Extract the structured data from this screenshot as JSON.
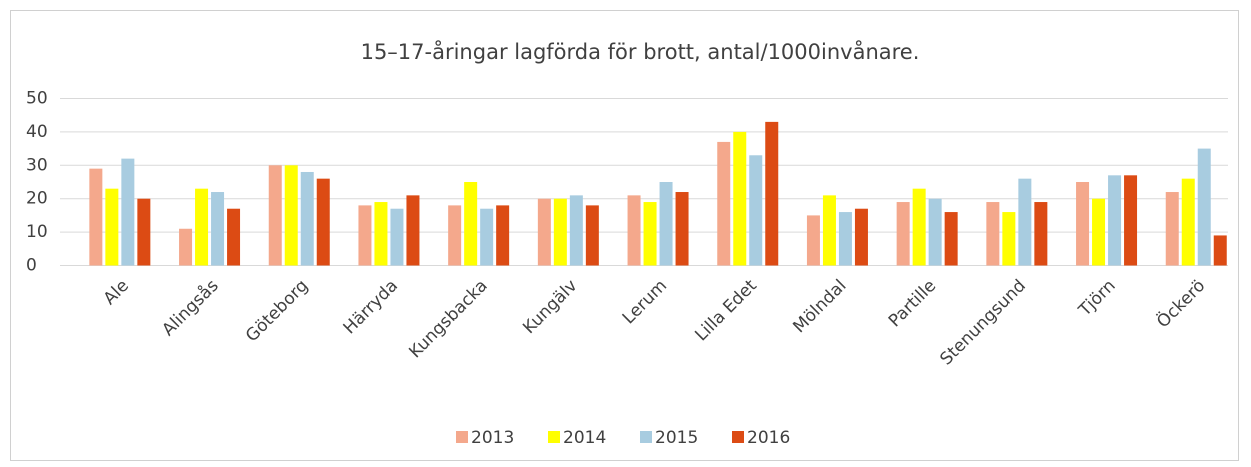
{
  "chart_data": {
    "type": "bar",
    "title": "15–17-åringar lagförda för brott, antal/1000invånare.",
    "categories": [
      "Ale",
      "Alingsås",
      "Göteborg",
      "Härryda",
      "Kungsbacka",
      "Kungälv",
      "Lerum",
      "Lilla Edet",
      "Mölndal",
      "Partille",
      "Stenungsund",
      "Tjörn",
      "Öckerö"
    ],
    "series": [
      {
        "name": "2013",
        "color": "#F4A88C",
        "values": [
          29,
          11,
          30,
          18,
          18,
          20,
          21,
          37,
          15,
          19,
          19,
          25,
          22
        ]
      },
      {
        "name": "2014",
        "color": "#FFFF00",
        "values": [
          23,
          23,
          30,
          19,
          25,
          20,
          19,
          40,
          21,
          23,
          16,
          20,
          26
        ]
      },
      {
        "name": "2015",
        "color": "#A8CCE0",
        "values": [
          32,
          22,
          28,
          17,
          17,
          21,
          25,
          33,
          16,
          20,
          26,
          27,
          35
        ]
      },
      {
        "name": "2016",
        "color": "#DC4B14",
        "values": [
          20,
          17,
          26,
          21,
          18,
          18,
          22,
          43,
          17,
          16,
          19,
          27,
          9
        ]
      }
    ],
    "ylim": [
      0,
      50
    ],
    "yticks": [
      0,
      10,
      20,
      30,
      40,
      50
    ],
    "grid": true,
    "legend": "bottom"
  }
}
